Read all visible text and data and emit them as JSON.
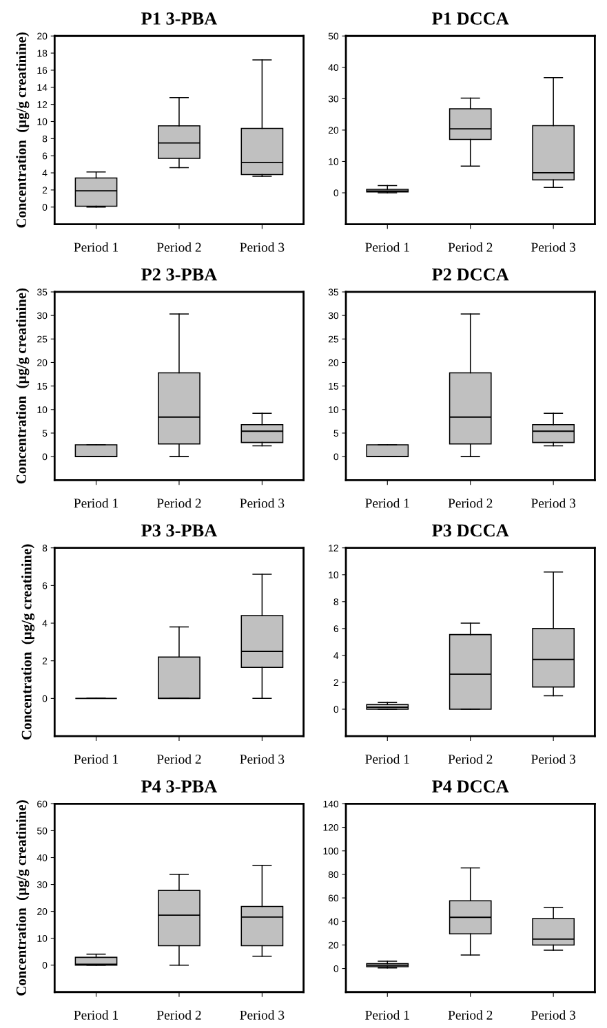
{
  "chart_data": [
    {
      "type": "box",
      "title": "P1 3-PBA",
      "ylabel": "Concentration  (µg/g creatinine)",
      "categories": [
        "Period 1",
        "Period 2",
        "Period 3"
      ],
      "color": "#c0c0c0",
      "ylim": [
        -2,
        20
      ],
      "yticks": [
        0,
        2,
        4,
        6,
        8,
        10,
        12,
        14,
        16,
        18,
        20
      ],
      "boxes": [
        {
          "low": 0,
          "q1": 0.1,
          "median": 1.9,
          "q3": 3.4,
          "high": 4.1
        },
        {
          "low": 4.6,
          "q1": 5.7,
          "median": 7.5,
          "q3": 9.5,
          "high": 12.8
        },
        {
          "low": 3.6,
          "q1": 3.8,
          "median": 5.2,
          "q3": 9.2,
          "high": 17.2
        }
      ]
    },
    {
      "type": "box",
      "title": "P1 DCCA",
      "categories": [
        "Period 1",
        "Period 2",
        "Period 3"
      ],
      "color": "#c0c0c0",
      "ylim": [
        -10,
        50
      ],
      "yticks": [
        0,
        10,
        20,
        30,
        40,
        50
      ],
      "boxes": [
        {
          "low": 0,
          "q1": 0.3,
          "median": 0.6,
          "q3": 1.1,
          "high": 2.3
        },
        {
          "low": 8.5,
          "q1": 17,
          "median": 20.4,
          "q3": 26.8,
          "high": 30.2
        },
        {
          "low": 1.7,
          "q1": 4.1,
          "median": 6.4,
          "q3": 21.4,
          "high": 36.7
        }
      ]
    },
    {
      "type": "box",
      "title": "P2 3-PBA",
      "ylabel": "Concentration  (µg/g creatinine)",
      "categories": [
        "Period 1",
        "Period 2",
        "Period 3"
      ],
      "color": "#c0c0c0",
      "ylim": [
        -5,
        35
      ],
      "yticks": [
        0,
        5,
        10,
        15,
        20,
        25,
        30,
        35
      ],
      "boxes": [
        {
          "low": 0,
          "q1": 0,
          "median": 0,
          "q3": 2.5,
          "high": 2.5
        },
        {
          "low": 0,
          "q1": 2.7,
          "median": 8.4,
          "q3": 17.8,
          "high": 30.3
        },
        {
          "low": 2.3,
          "q1": 3.0,
          "median": 5.4,
          "q3": 6.8,
          "high": 9.2
        }
      ]
    },
    {
      "type": "box",
      "title": "P2 DCCA",
      "categories": [
        "Period 1",
        "Period 2",
        "Period 3"
      ],
      "color": "#c0c0c0",
      "ylim": [
        -5,
        35
      ],
      "yticks": [
        0,
        5,
        10,
        15,
        20,
        25,
        30,
        35
      ],
      "boxes": [
        {
          "low": 0,
          "q1": 0,
          "median": 0,
          "q3": 2.5,
          "high": 2.5
        },
        {
          "low": 0,
          "q1": 2.7,
          "median": 8.4,
          "q3": 17.8,
          "high": 30.3
        },
        {
          "low": 2.3,
          "q1": 3.0,
          "median": 5.4,
          "q3": 6.8,
          "high": 9.2
        }
      ]
    },
    {
      "type": "box",
      "title": "P3 3-PBA",
      "ylabel": "Concentration  (µg/g creatinine)",
      "categories": [
        "Period 1",
        "Period 2",
        "Period 3"
      ],
      "color": "#c0c0c0",
      "ylim": [
        -2,
        8
      ],
      "yticks": [
        0,
        2,
        4,
        6,
        8
      ],
      "boxes": [
        {
          "low": 0,
          "q1": 0,
          "median": 0,
          "q3": 0,
          "high": 0
        },
        {
          "low": 0,
          "q1": 0,
          "median": 0,
          "q3": 2.2,
          "high": 3.8
        },
        {
          "low": 0,
          "q1": 1.65,
          "median": 2.5,
          "q3": 4.4,
          "high": 6.6
        }
      ]
    },
    {
      "type": "box",
      "title": "P3 DCCA",
      "categories": [
        "Period 1",
        "Period 2",
        "Period 3"
      ],
      "color": "#c0c0c0",
      "ylim": [
        -2,
        12
      ],
      "yticks": [
        0,
        2,
        4,
        6,
        8,
        10,
        12
      ],
      "boxes": [
        {
          "low": 0,
          "q1": 0,
          "median": 0.15,
          "q3": 0.35,
          "high": 0.5
        },
        {
          "low": 0,
          "q1": 0,
          "median": 2.6,
          "q3": 5.55,
          "high": 6.4
        },
        {
          "low": 1.0,
          "q1": 1.65,
          "median": 3.7,
          "q3": 6.0,
          "high": 10.2
        }
      ]
    },
    {
      "type": "box",
      "title": "P4 3-PBA",
      "ylabel": "Concentration  (µg/g creatinine)",
      "categories": [
        "Period 1",
        "Period 2",
        "Period 3"
      ],
      "color": "#c0c0c0",
      "ylim": [
        -10,
        60
      ],
      "yticks": [
        0,
        10,
        20,
        30,
        40,
        50,
        60
      ],
      "boxes": [
        {
          "low": 0,
          "q1": 0,
          "median": 0.3,
          "q3": 2.9,
          "high": 4.1
        },
        {
          "low": 0,
          "q1": 7.2,
          "median": 18.6,
          "q3": 27.8,
          "high": 33.8
        },
        {
          "low": 3.3,
          "q1": 7.2,
          "median": 17.9,
          "q3": 21.8,
          "high": 37.1
        }
      ]
    },
    {
      "type": "box",
      "title": "P4 DCCA",
      "categories": [
        "Period 1",
        "Period 2",
        "Period 3"
      ],
      "color": "#c0c0c0",
      "ylim": [
        -20,
        140
      ],
      "yticks": [
        0,
        20,
        40,
        60,
        80,
        100,
        120,
        140
      ],
      "boxes": [
        {
          "low": 0.5,
          "q1": 1.5,
          "median": 2.8,
          "q3": 4.2,
          "high": 6.2
        },
        {
          "low": 11.5,
          "q1": 29.5,
          "median": 43.5,
          "q3": 57.5,
          "high": 85.5
        },
        {
          "low": 15.5,
          "q1": 20,
          "median": 25,
          "q3": 42.5,
          "high": 52
        }
      ]
    }
  ]
}
